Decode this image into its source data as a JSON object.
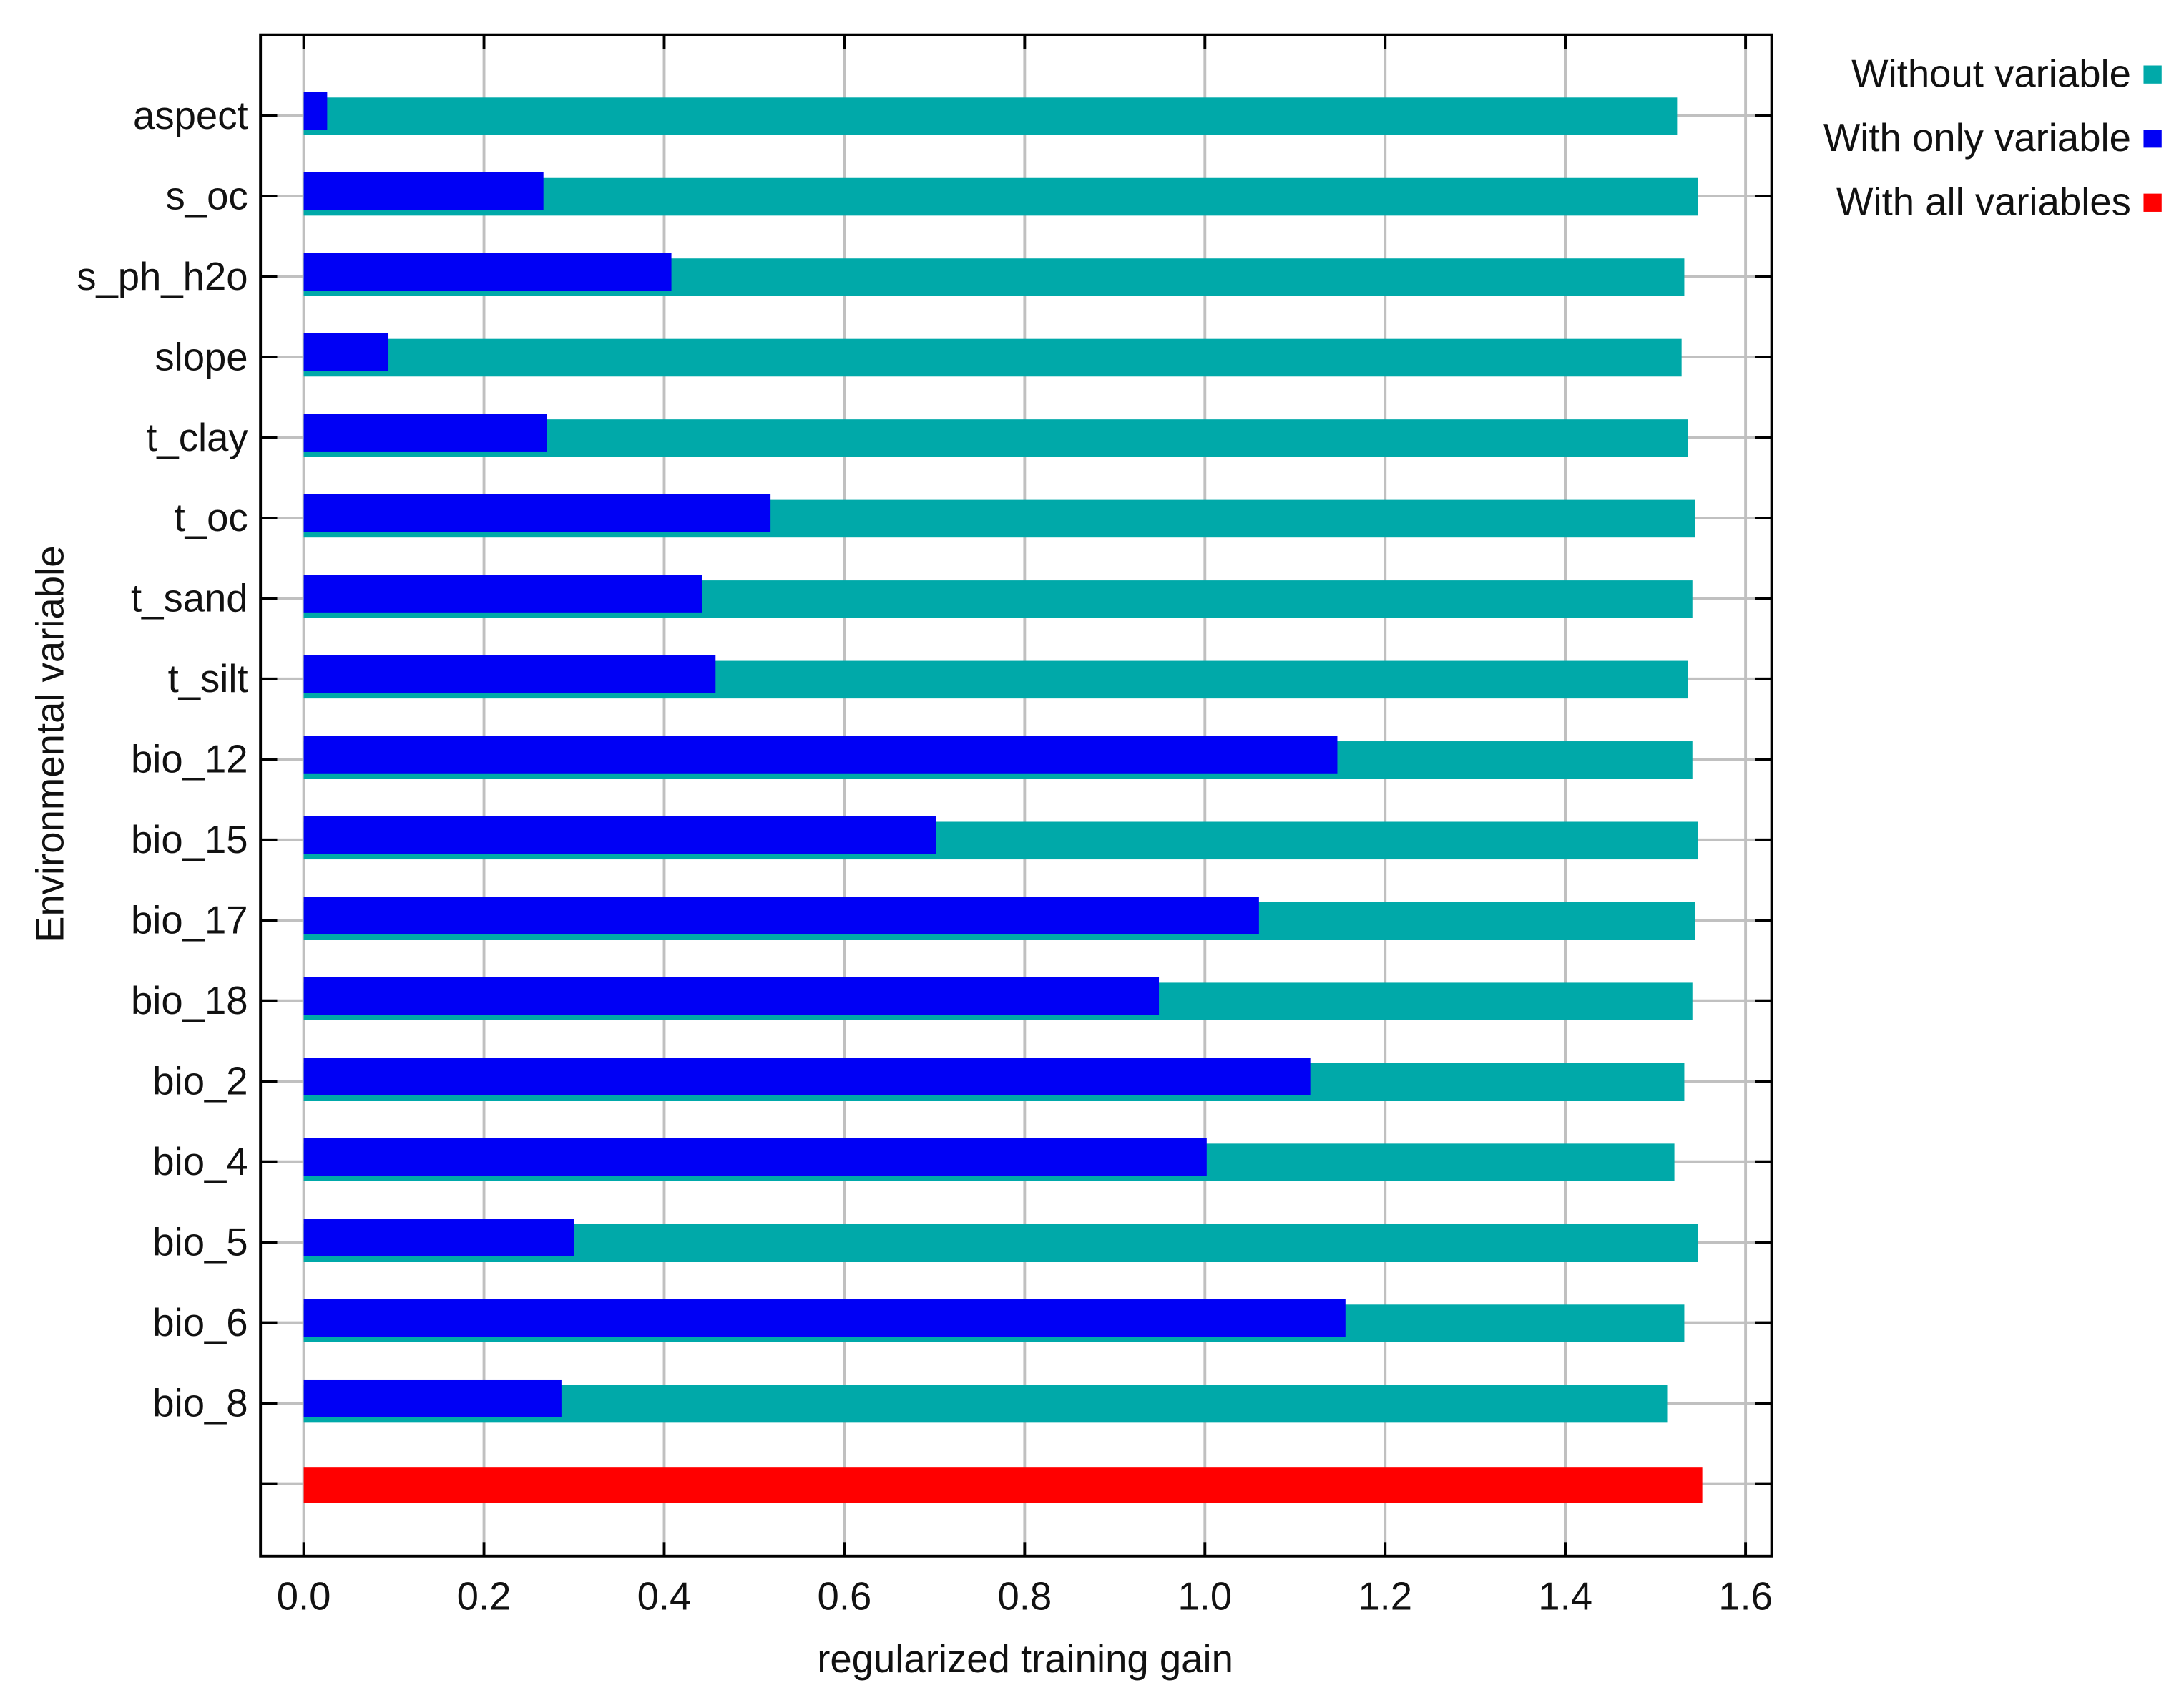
{
  "chart_data": {
    "type": "bar",
    "orientation": "horizontal",
    "x_label": "regularized training gain",
    "y_label": "Environmental variable",
    "categories": [
      "aspect",
      "s_oc",
      "s_ph_h2o",
      "slope",
      "t_clay",
      "t_oc",
      "t_sand",
      "t_silt",
      "bio_12",
      "bio_15",
      "bio_17",
      "bio_18",
      "bio_2",
      "bio_4",
      "bio_5",
      "bio_6",
      "bio_8",
      null
    ],
    "series": [
      {
        "name": "Without variable",
        "color": "#00a9a9",
        "values": [
          1.524,
          1.547,
          1.532,
          1.529,
          1.536,
          1.544,
          1.541,
          1.536,
          1.541,
          1.547,
          1.544,
          1.541,
          1.532,
          1.521,
          1.547,
          1.532,
          1.513,
          null
        ]
      },
      {
        "name": "With only variable",
        "color": "#0000f5",
        "values": [
          0.026,
          0.266,
          0.408,
          0.094,
          0.27,
          0.518,
          0.442,
          0.457,
          1.147,
          0.702,
          1.06,
          0.949,
          1.117,
          1.002,
          0.3,
          1.156,
          0.286,
          null
        ]
      },
      {
        "name": "With all variables",
        "color": "#ff0000",
        "values": [
          null,
          null,
          null,
          null,
          null,
          null,
          null,
          null,
          null,
          null,
          null,
          null,
          null,
          null,
          null,
          null,
          null,
          1.552
        ]
      }
    ],
    "xlim": [
      -0.048,
      1.629
    ],
    "xticks": [
      {
        "value": 0,
        "label": "0.0"
      },
      0.2,
      0.4,
      0.6,
      0.8,
      {
        "value": 1,
        "label": "1.0"
      },
      1.2,
      1.4,
      1.6
    ],
    "grid": true,
    "legend": "right"
  }
}
